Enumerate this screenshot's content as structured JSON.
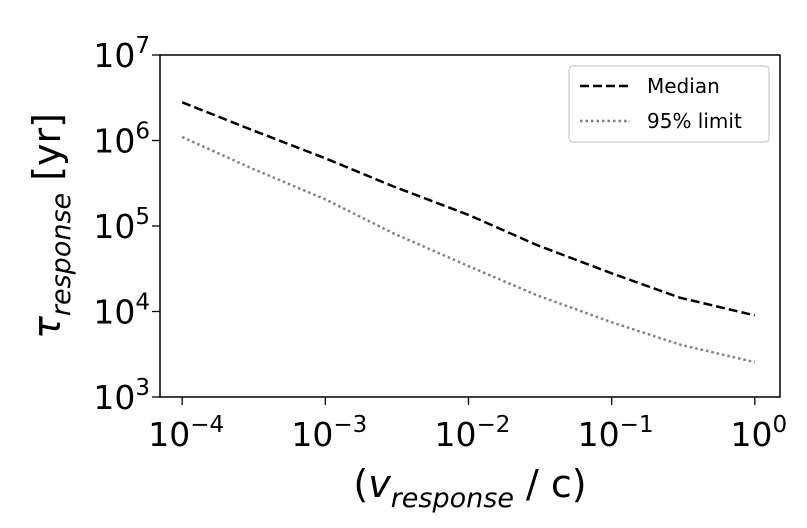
{
  "chart_data": {
    "type": "line",
    "x_scale": "log",
    "y_scale": "log",
    "xlim": [
      7e-05,
      1.5
    ],
    "ylim": [
      1000,
      10000000
    ],
    "grid": false,
    "legend_position": "top-right",
    "x_axis_label": {
      "open": "(",
      "symbol": "v",
      "subscript": "response",
      "rest": " / c)"
    },
    "y_axis_label": {
      "symbol": "τ",
      "subscript": "response",
      "rest": " [yr]"
    },
    "x_ticks": [
      {
        "value": 0.0001,
        "base": "10",
        "exp": "−4"
      },
      {
        "value": 0.001,
        "base": "10",
        "exp": "−3"
      },
      {
        "value": 0.01,
        "base": "10",
        "exp": "−2"
      },
      {
        "value": 0.1,
        "base": "10",
        "exp": "−1"
      },
      {
        "value": 1,
        "base": "10",
        "exp": "0"
      }
    ],
    "y_ticks": [
      {
        "value": 1000,
        "base": "10",
        "exp": "3"
      },
      {
        "value": 10000,
        "base": "10",
        "exp": "4"
      },
      {
        "value": 100000,
        "base": "10",
        "exp": "5"
      },
      {
        "value": 1000000,
        "base": "10",
        "exp": "6"
      },
      {
        "value": 10000000,
        "base": "10",
        "exp": "7"
      }
    ],
    "series": [
      {
        "name": "Median",
        "color": "#000000",
        "style": "dashed",
        "x": [
          0.0001,
          0.0003,
          0.001,
          0.003,
          0.01,
          0.03,
          0.1,
          0.3,
          1
        ],
        "y": [
          2800000,
          1350000,
          620000,
          290000,
          135000,
          60000,
          28000,
          14500,
          9000
        ]
      },
      {
        "name": "95% limit",
        "color": "#808080",
        "style": "dotted",
        "x": [
          0.0001,
          0.0003,
          0.001,
          0.003,
          0.01,
          0.03,
          0.1,
          0.3,
          1
        ],
        "y": [
          1100000,
          480000,
          205000,
          82000,
          34000,
          15500,
          7500,
          4100,
          2550
        ]
      }
    ]
  }
}
